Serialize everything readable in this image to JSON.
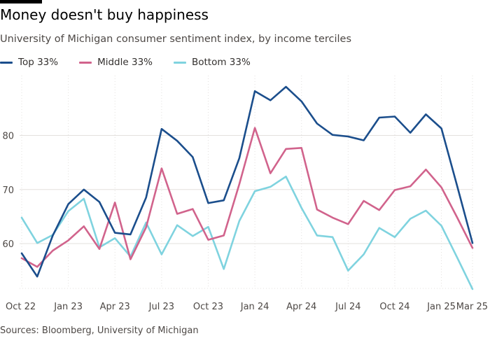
{
  "header": {
    "title": "Money doesn't buy happiness",
    "subtitle": "University of Michigan consumer sentiment index, by income terciles"
  },
  "footer": {
    "source": "Sources: Bloomberg, University of Michigan"
  },
  "colors": {
    "top": "#1b4e8c",
    "middle": "#d1638c",
    "bottom": "#7fd3df",
    "grid": "#e3e0de",
    "axis_text": "#4d4845"
  },
  "chart_data": {
    "type": "line",
    "x": [
      "Oct 22",
      "Nov 22",
      "Dec 22",
      "Jan 23",
      "Feb 23",
      "Mar 23",
      "Apr 23",
      "May 23",
      "Jun 23",
      "Jul 23",
      "Aug 23",
      "Sep 23",
      "Oct 23",
      "Nov 23",
      "Dec 23",
      "Jan 24",
      "Feb 24",
      "Mar 24",
      "Apr 24",
      "May 24",
      "Jun 24",
      "Jul 24",
      "Aug 24",
      "Sep 24",
      "Oct 24",
      "Nov 24",
      "Dec 24",
      "Jan 25",
      "Feb 25",
      "Mar 25"
    ],
    "x_tick_labels": [
      "Oct 22",
      "Jan 23",
      "Apr 23",
      "Jul 23",
      "Oct 23",
      "Jan 24",
      "Apr 24",
      "Jul 24",
      "Oct 24",
      "Jan 25",
      "Mar 25"
    ],
    "x_tick_indices": [
      0,
      3,
      6,
      9,
      12,
      15,
      18,
      21,
      24,
      27,
      29
    ],
    "y_ticks": [
      60,
      70,
      80
    ],
    "ylim": [
      51,
      91
    ],
    "grid": true,
    "legend_position": "top-left",
    "series": [
      {
        "name": "Top 33%",
        "color": "#1b4e8c",
        "values": [
          58.2,
          53.9,
          61.5,
          67.3,
          70.0,
          67.7,
          62.0,
          61.7,
          68.5,
          81.2,
          79.0,
          76.0,
          67.5,
          68.0,
          75.8,
          88.2,
          86.5,
          89.0,
          86.3,
          82.2,
          80.1,
          79.8,
          79.1,
          83.3,
          83.5,
          80.5,
          83.9,
          81.3,
          70.8,
          60.1
        ]
      },
      {
        "name": "Middle 33%",
        "color": "#d1638c",
        "values": [
          57.3,
          55.7,
          58.7,
          60.6,
          63.2,
          59.0,
          67.6,
          57.1,
          63.0,
          73.9,
          65.5,
          66.4,
          60.7,
          61.5,
          71.0,
          81.4,
          73.0,
          77.5,
          77.7,
          66.3,
          64.8,
          63.6,
          67.9,
          66.2,
          69.9,
          70.6,
          73.7,
          70.4,
          64.9,
          59.2
        ]
      },
      {
        "name": "Bottom 33%",
        "color": "#7fd3df",
        "values": [
          64.8,
          60.1,
          61.6,
          66.0,
          68.3,
          59.3,
          61.0,
          57.6,
          63.9,
          58.0,
          63.4,
          61.4,
          63.1,
          55.3,
          64.2,
          69.7,
          70.5,
          72.4,
          66.6,
          61.5,
          61.2,
          55.0,
          58.0,
          62.9,
          61.2,
          64.6,
          66.1,
          63.3,
          57.5,
          51.6
        ]
      }
    ]
  }
}
